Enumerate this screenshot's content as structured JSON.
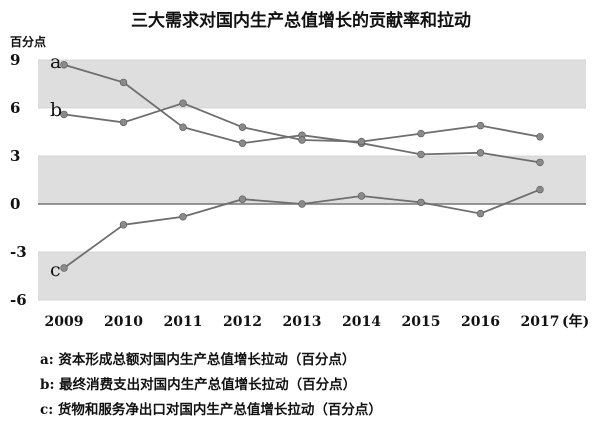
{
  "chart_data": {
    "type": "line",
    "title": "三大需求对国内生产总值增长的贡献率和拉动",
    "ylabel": "百分点",
    "x": [
      "2009",
      "2010",
      "2011",
      "2012",
      "2013",
      "2014",
      "2015",
      "2016",
      "2017"
    ],
    "xunit": "(年)",
    "ylim": [
      -6,
      9
    ],
    "yticks": [
      "9",
      "6",
      "3",
      "0",
      "-3",
      "-6"
    ],
    "ytick_values": [
      9,
      6,
      3,
      0,
      -3,
      -6
    ],
    "grid": true,
    "series": [
      {
        "tag": "a",
        "legend": "a: 资本形成总额对国内生产总值增长拉动（百分点）",
        "values": [
          8.7,
          7.6,
          4.8,
          3.8,
          4.3,
          3.8,
          3.1,
          3.2,
          2.6
        ]
      },
      {
        "tag": "b",
        "legend": "b: 最终消费支出对国内生产总值增长拉动（百分点）",
        "values": [
          5.6,
          5.1,
          6.3,
          4.8,
          4.0,
          3.9,
          4.4,
          4.9,
          4.2
        ]
      },
      {
        "tag": "c",
        "legend": "c: 货物和服务净出口对国内生产总值增长拉动（百分点）",
        "values": [
          -4.0,
          -1.3,
          -0.8,
          0.3,
          0.0,
          0.5,
          0.1,
          -0.6,
          0.9
        ]
      }
    ]
  },
  "colors": {
    "band": "#dedede",
    "line": "#6e6e6e",
    "marker": "#8a8a8a",
    "axis": "#777777"
  }
}
